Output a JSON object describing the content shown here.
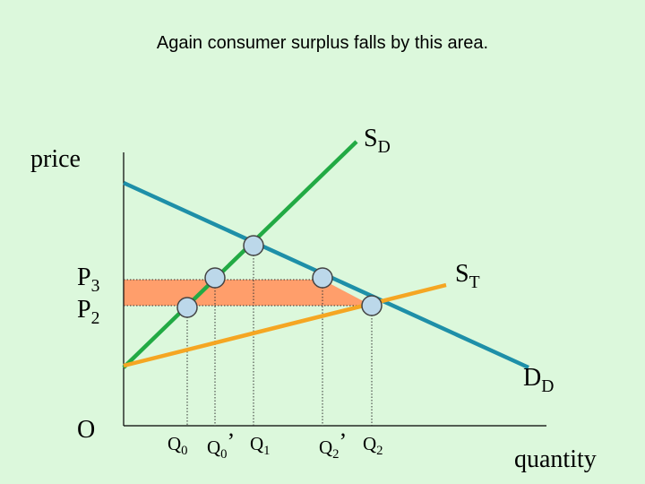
{
  "title": "Again consumer surplus falls by this area.",
  "axes": {
    "y_label": "price",
    "x_label": "quantity",
    "origin": "O"
  },
  "curves": {
    "supply_domestic": {
      "main": "S",
      "sub": "D",
      "color": "#22aa44"
    },
    "supply_total": {
      "main": "S",
      "sub": "T",
      "color": "#f5a623"
    },
    "demand_domestic": {
      "main": "D",
      "sub": "D",
      "color": "#1e8fa8"
    }
  },
  "price_labels": [
    {
      "main": "P",
      "sub": "3"
    },
    {
      "main": "P",
      "sub": "2"
    }
  ],
  "quantity_labels": [
    {
      "main": "Q",
      "sub": "0",
      "prime": ""
    },
    {
      "main": "Q",
      "sub": "0",
      "prime": "’"
    },
    {
      "main": "Q",
      "sub": "1",
      "prime": ""
    },
    {
      "main": "Q",
      "sub": "2",
      "prime": "’"
    },
    {
      "main": "Q",
      "sub": "2",
      "prime": ""
    }
  ],
  "colors": {
    "background": "#dcf8dc",
    "surplus_area": "#ff9e6b",
    "point_fill": "#bcd8ea",
    "axis": "#000000"
  }
}
